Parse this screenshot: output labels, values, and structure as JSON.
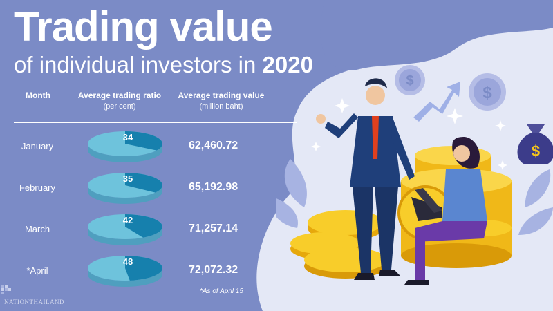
{
  "title": "Trading value",
  "subtitle_prefix": "of individual investors in",
  "subtitle_year": "2020",
  "headers": {
    "month": "Month",
    "ratio": "Average trading ratio",
    "ratio_unit": "(per cent)",
    "value": "Average trading value",
    "value_unit": "(million baht)"
  },
  "note": "*As of April 15",
  "brand": "NATIONTHAILAND",
  "colors": {
    "background": "#7b8bc6",
    "pie_light": "#6ec3dc",
    "pie_dark": "#1680ad",
    "accent": "#ffffff"
  },
  "chart_data": {
    "type": "table",
    "title": "Trading value of individual investors in 2020",
    "columns": [
      "Month",
      "Average trading ratio (per cent)",
      "Average trading value (million baht)"
    ],
    "rows": [
      {
        "month": "January",
        "ratio": 34,
        "ratio_label": "34",
        "value": 62460.72,
        "value_label": "62,460.72"
      },
      {
        "month": "February",
        "ratio": 35,
        "ratio_label": "35",
        "value": 65192.98,
        "value_label": "65,192.98"
      },
      {
        "month": "March",
        "ratio": 42,
        "ratio_label": "42",
        "value": 71257.14,
        "value_label": "71,257.14"
      },
      {
        "month": "*April",
        "ratio": 48,
        "ratio_label": "48",
        "value": 72072.32,
        "value_label": "72,072.32"
      }
    ]
  }
}
